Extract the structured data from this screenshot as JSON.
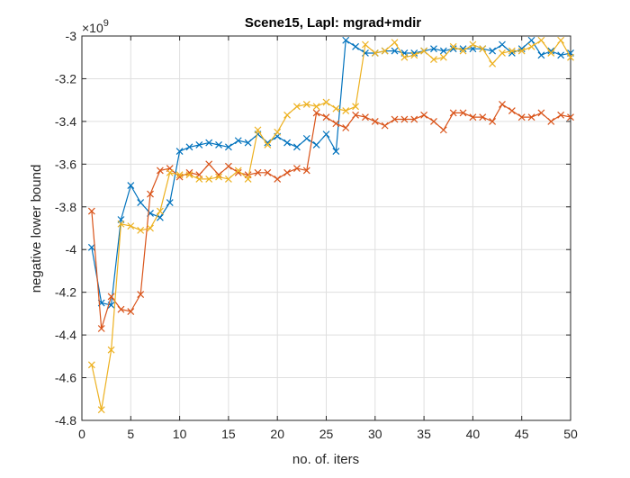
{
  "chart_data": {
    "type": "line",
    "title": "Scene15, Lapl: mgrad+mdir",
    "xlabel": "no. of. iters",
    "ylabel": "negative lower bound",
    "y_exponent_label": "×10",
    "y_exponent_power": "9",
    "xlim": [
      0,
      50
    ],
    "ylim": [
      -4.8,
      -3.0
    ],
    "xticks": [
      0,
      5,
      10,
      15,
      20,
      25,
      30,
      35,
      40,
      45,
      50
    ],
    "yticks": [
      -4.8,
      -4.6,
      -4.4,
      -4.2,
      -4.0,
      -3.8,
      -3.6,
      -3.4,
      -3.2,
      -3.0
    ],
    "ytick_labels": [
      "-4.8",
      "-4.6",
      "-4.4",
      "-4.2",
      "-4",
      "-3.8",
      "-3.6",
      "-3.4",
      "-3.2",
      "-3"
    ],
    "grid": true,
    "marker": "x",
    "x": [
      1,
      2,
      3,
      4,
      5,
      6,
      7,
      8,
      9,
      10,
      11,
      12,
      13,
      14,
      15,
      16,
      17,
      18,
      19,
      20,
      21,
      22,
      23,
      24,
      25,
      26,
      27,
      28,
      29,
      30,
      31,
      32,
      33,
      34,
      35,
      36,
      37,
      38,
      39,
      40,
      41,
      42,
      43,
      44,
      45,
      46,
      47,
      48,
      49,
      50
    ],
    "series": [
      {
        "color": "#0072BD",
        "values": [
          -3.99,
          -4.25,
          -4.26,
          -3.86,
          -3.7,
          -3.78,
          -3.83,
          -3.85,
          -3.78,
          -3.54,
          -3.52,
          -3.51,
          -3.5,
          -3.51,
          -3.52,
          -3.49,
          -3.5,
          -3.46,
          -3.5,
          -3.47,
          -3.5,
          -3.52,
          -3.48,
          -3.51,
          -3.46,
          -3.54,
          -3.02,
          -3.05,
          -3.08,
          -3.08,
          -3.07,
          -3.07,
          -3.08,
          -3.08,
          -3.07,
          -3.06,
          -3.07,
          -3.06,
          -3.06,
          -3.06,
          -3.06,
          -3.07,
          -3.04,
          -3.08,
          -3.06,
          -3.02,
          -3.09,
          -3.07,
          -3.09,
          -3.08
        ]
      },
      {
        "color": "#D95319",
        "values": [
          -3.82,
          -4.37,
          -4.22,
          -4.28,
          -4.29,
          -4.21,
          -3.74,
          -3.63,
          -3.62,
          -3.66,
          -3.64,
          -3.65,
          -3.6,
          -3.65,
          -3.61,
          -3.64,
          -3.65,
          -3.64,
          -3.64,
          -3.67,
          -3.64,
          -3.62,
          -3.63,
          -3.36,
          -3.38,
          -3.41,
          -3.43,
          -3.37,
          -3.38,
          -3.4,
          -3.42,
          -3.39,
          -3.39,
          -3.39,
          -3.37,
          -3.4,
          -3.44,
          -3.36,
          -3.36,
          -3.38,
          -3.38,
          -3.4,
          -3.32,
          -3.35,
          -3.38,
          -3.38,
          -3.36,
          -3.4,
          -3.37,
          -3.38
        ]
      },
      {
        "color": "#EDB120",
        "values": [
          -4.54,
          -4.75,
          -4.47,
          -3.88,
          -3.89,
          -3.91,
          -3.9,
          -3.82,
          -3.64,
          -3.65,
          -3.65,
          -3.67,
          -3.67,
          -3.66,
          -3.67,
          -3.63,
          -3.67,
          -3.44,
          -3.51,
          -3.45,
          -3.37,
          -3.33,
          -3.32,
          -3.33,
          -3.31,
          -3.34,
          -3.35,
          -3.33,
          -3.04,
          -3.08,
          -3.07,
          -3.03,
          -3.1,
          -3.09,
          -3.07,
          -3.11,
          -3.1,
          -3.05,
          -3.07,
          -3.04,
          -3.06,
          -3.13,
          -3.08,
          -3.07,
          -3.07,
          -3.05,
          -3.02,
          -3.08,
          -3.02,
          -3.1
        ]
      }
    ]
  }
}
